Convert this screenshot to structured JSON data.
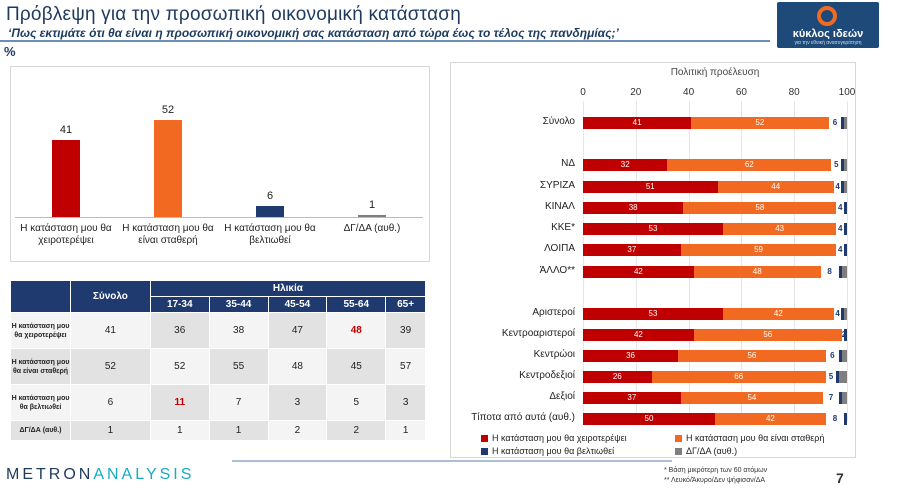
{
  "header": {
    "title": "Πρόβλεψη για την προσωπική οικονομική κατάσταση",
    "subtitle": "‘Πως εκτιμάτε ότι θα είναι η προσωπική οικονομική σας κατάσταση από τώρα έως το τέλος της πανδημίας;’",
    "unit": "%"
  },
  "logo": {
    "name": "κύκλος ιδεών",
    "tagline": "για την εθνική ανασυγκρότηση"
  },
  "footer": {
    "brand_a": "METRON",
    "brand_b": "ANALYSIS",
    "note1": "*  Βάση μικρότερη των 60 ατόμων",
    "note2": "** Λευκό/Άκυρο/Δεν ψήφισαν/ΔΑ",
    "page": "7"
  },
  "colors": {
    "worse": "#c00000",
    "stable": "#f26a21",
    "better": "#1e3a6e",
    "dk": "#7f7f7f"
  },
  "chart_data": [
    {
      "type": "bar",
      "categories": [
        "Η κατάσταση μου θα χειροτερέψει",
        "Η κατάσταση μου θα είναι σταθερή",
        "Η κατάσταση μου θα βελτιωθεί",
        "ΔΓ/ΔΑ (αυθ.)"
      ],
      "values": [
        41,
        52,
        6,
        1
      ],
      "labels": [
        "41",
        "52",
        "6",
        "1"
      ],
      "colors": [
        "#c00000",
        "#f26a21",
        "#1e3a6e",
        "#7f7f7f"
      ],
      "ylim": [
        0,
        60
      ]
    },
    {
      "type": "table",
      "group_header": "Ηλικία",
      "columns": [
        "",
        "Σύνολο",
        "17-34",
        "35-44",
        "45-54",
        "55-64",
        "65+"
      ],
      "rows": [
        {
          "label": "Η κατάσταση μου θα χειροτερέψει",
          "values": [
            "41",
            "36",
            "38",
            "47",
            "48",
            "39"
          ],
          "highlight": [
            4
          ]
        },
        {
          "label": "Η κατάσταση μου θα είναι σταθερή",
          "values": [
            "52",
            "52",
            "55",
            "48",
            "45",
            "57"
          ],
          "highlight": []
        },
        {
          "label": "Η κατάσταση μου θα βελτιωθεί",
          "values": [
            "6",
            "11",
            "7",
            "3",
            "5",
            "3"
          ],
          "highlight": [
            1
          ]
        },
        {
          "label": "ΔΓ/ΔΑ (αυθ.)",
          "values": [
            "1",
            "1",
            "1",
            "2",
            "2",
            "1"
          ],
          "highlight": []
        }
      ]
    },
    {
      "type": "bar",
      "orientation": "horizontal-stacked",
      "title": "Πολιτική προέλευση",
      "xlim": [
        0,
        100
      ],
      "ticks": [
        "0",
        "20",
        "40",
        "60",
        "80",
        "100"
      ],
      "series": [
        {
          "name": "Η κατάσταση μου θα χειροτερέψει",
          "color": "#c00000"
        },
        {
          "name": "Η κατάσταση μου θα είναι σταθερή",
          "color": "#f26a21"
        },
        {
          "name": "Η κατάσταση μου θα βελτιωθεί",
          "color": "#1e3a6e"
        },
        {
          "name": "ΔΓ/ΔΑ (αυθ.)",
          "color": "#7f7f7f"
        }
      ],
      "rows": [
        {
          "label": "Σύνολο",
          "values": [
            41,
            52,
            6,
            1
          ],
          "group": 0
        },
        {
          "label": "ΝΔ",
          "values": [
            32,
            62,
            5,
            1
          ],
          "group": 1
        },
        {
          "label": "ΣΥΡΙΖΑ",
          "values": [
            51,
            44,
            4,
            1
          ],
          "group": 1
        },
        {
          "label": "ΚΙΝΑΛ",
          "values": [
            38,
            58,
            4,
            0
          ],
          "group": 1
        },
        {
          "label": "ΚΚΕ*",
          "values": [
            53,
            43,
            4,
            0
          ],
          "group": 1
        },
        {
          "label": "ΛΟΙΠΑ",
          "values": [
            37,
            59,
            4,
            0
          ],
          "group": 1
        },
        {
          "label": "ΆΛΛΟ**",
          "values": [
            42,
            48,
            8,
            2
          ],
          "group": 1
        },
        {
          "label": "Αριστεροί",
          "values": [
            53,
            42,
            4,
            1
          ],
          "group": 2
        },
        {
          "label": "Κεντροαριστεροί",
          "values": [
            42,
            56,
            2,
            0
          ],
          "group": 2
        },
        {
          "label": "Κεντρώοι",
          "values": [
            36,
            56,
            6,
            2
          ],
          "group": 2
        },
        {
          "label": "Κεντροδεξιοί",
          "values": [
            26,
            66,
            5,
            3
          ],
          "group": 2
        },
        {
          "label": "Δεξιοί",
          "values": [
            37,
            54,
            7,
            2
          ],
          "group": 2
        },
        {
          "label": "Τίποτα από αυτά (αυθ.)",
          "values": [
            50,
            42,
            8,
            0
          ],
          "group": 2
        }
      ]
    }
  ]
}
